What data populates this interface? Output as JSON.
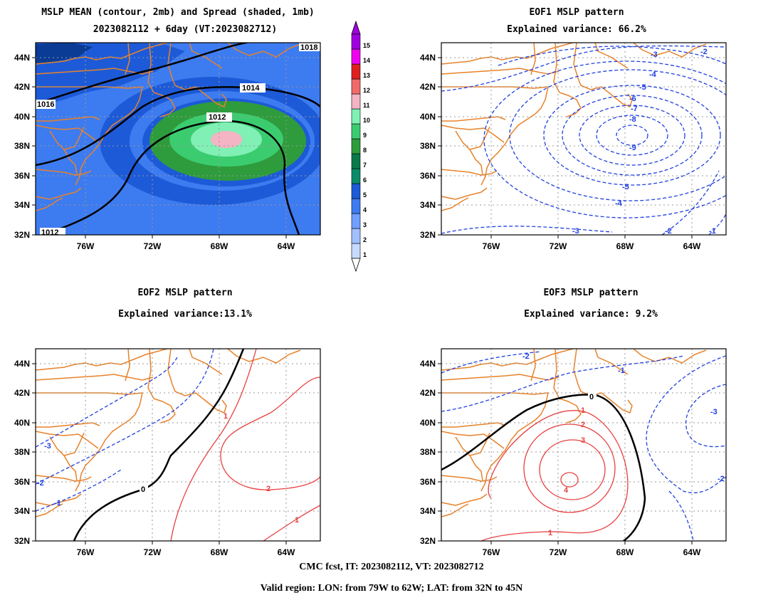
{
  "panels": {
    "p1": {
      "title1": "MSLP MEAN (contour, 2mb) and Spread (shaded, 1mb)",
      "title2": "2023082112 + 6day (VT:2023082712)"
    },
    "p2": {
      "title1": "EOF1 MSLP pattern",
      "title2": "Explained variance: 66.2%"
    },
    "p3": {
      "title1": "EOF2 MSLP pattern",
      "title2": "Explained variance:13.1%"
    },
    "p4": {
      "title1": "EOF3 MSLP pattern",
      "title2": "Explained variance: 9.2%"
    }
  },
  "axes": {
    "lat_labels": [
      "44N",
      "42N",
      "40N",
      "38N",
      "36N",
      "34N",
      "32N"
    ],
    "lon_labels": [
      "76W",
      "72W",
      "68W",
      "64W"
    ]
  },
  "colorbar": {
    "labels": [
      "1",
      "2",
      "3",
      "4",
      "5",
      "6",
      "7",
      "8",
      "9",
      "10",
      "11",
      "12",
      "13",
      "14",
      "15"
    ],
    "colors": [
      "#c6dbff",
      "#a0c0ff",
      "#6fa0ff",
      "#3d7bf0",
      "#1d5ad8",
      "#0a8c6a",
      "#0a7a4a",
      "#2e9c3c",
      "#3ccc70",
      "#80f0b4",
      "#f4b4c4",
      "#f06a6a",
      "#e02020",
      "#f000f0",
      "#a000e0"
    ]
  },
  "contours": {
    "p1": [
      "1018",
      "1014",
      "1012",
      "1016",
      "1012"
    ],
    "p2": [
      "-3",
      "-2",
      "-4",
      "-5",
      "-6",
      "-7",
      "-8",
      "-9",
      "-5",
      "-4",
      "-3",
      "-2",
      "-1"
    ],
    "p3": [
      "-3",
      "-2",
      "-1",
      "0",
      "1",
      "2",
      "1"
    ],
    "p4": [
      "-2",
      "-1",
      "0",
      "1",
      "2",
      "3",
      "4",
      "1",
      "-3",
      "-2"
    ]
  },
  "colors": {
    "coast": "#e8822a",
    "negative": "#2040e0",
    "positive": "#e84040",
    "zero": "#000000"
  },
  "footer": {
    "line1": "CMC fcst, IT: 2023082112, VT: 2023082712",
    "line2": "Valid region: LON: from 79W to 62W; LAT: from 32N to 45N"
  }
}
